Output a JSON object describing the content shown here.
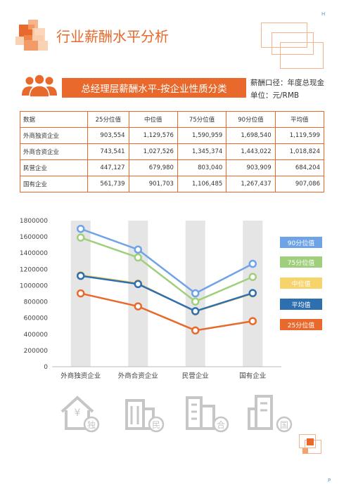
{
  "corner": {
    "top_right": "H",
    "bottom_right": "P"
  },
  "header": {
    "title": "行业薪酬水平分析"
  },
  "banner": {
    "title": "总经理层薪酬水平-按企业性质分类"
  },
  "notes": {
    "caliber": "薪酬口径：年度总现金",
    "unit": "单位：元/RMB"
  },
  "table": {
    "headers": [
      "数据",
      "25分位值",
      "中位值",
      "75分位值",
      "90分位值",
      "平均值"
    ],
    "rows": [
      [
        "外商独资企业",
        "903,554",
        "1,129,576",
        "1,590,959",
        "1,698,540",
        "1,119,599"
      ],
      [
        "外商合资企业",
        "743,541",
        "1,027,526",
        "1,345,374",
        "1,443,022",
        "1,018,824"
      ],
      [
        "民营企业",
        "447,127",
        "679,980",
        "803,040",
        "903,909",
        "684,204"
      ],
      [
        "国有企业",
        "561,739",
        "901,703",
        "1,106,485",
        "1,267,437",
        "907,086"
      ]
    ]
  },
  "chart_data": {
    "type": "line",
    "categories": [
      "外商独资企业",
      "外商合资企业",
      "民营企业",
      "国有企业"
    ],
    "ylim": [
      0,
      1800000
    ],
    "yticks": [
      "0",
      "200000",
      "400000",
      "600000",
      "800000",
      "1000000",
      "1200000",
      "1400000",
      "1600000",
      "1800000"
    ],
    "series": [
      {
        "name": "90分位值",
        "color": "#6fa3e8",
        "values": [
          1698540,
          1443022,
          903909,
          1267437
        ]
      },
      {
        "name": "75分位值",
        "color": "#a0cf7c",
        "values": [
          1590959,
          1345374,
          803040,
          1106485
        ]
      },
      {
        "name": "中位值",
        "color": "#f7d36b",
        "values": [
          1129576,
          1027526,
          679980,
          901703
        ]
      },
      {
        "name": "平均值",
        "color": "#2e6fb0",
        "values": [
          1119599,
          1018824,
          684204,
          907086
        ]
      },
      {
        "name": "25分位值",
        "color": "#e8692b",
        "values": [
          903554,
          743541,
          447127,
          561739
        ]
      }
    ],
    "legend_position": "right",
    "grid": false
  },
  "icons": [
    {
      "icon": "house-icon",
      "label": "独"
    },
    {
      "icon": "building-icon",
      "label": "民"
    },
    {
      "icon": "office-icon",
      "label": "合"
    },
    {
      "icon": "tower-icon",
      "label": "国"
    }
  ]
}
